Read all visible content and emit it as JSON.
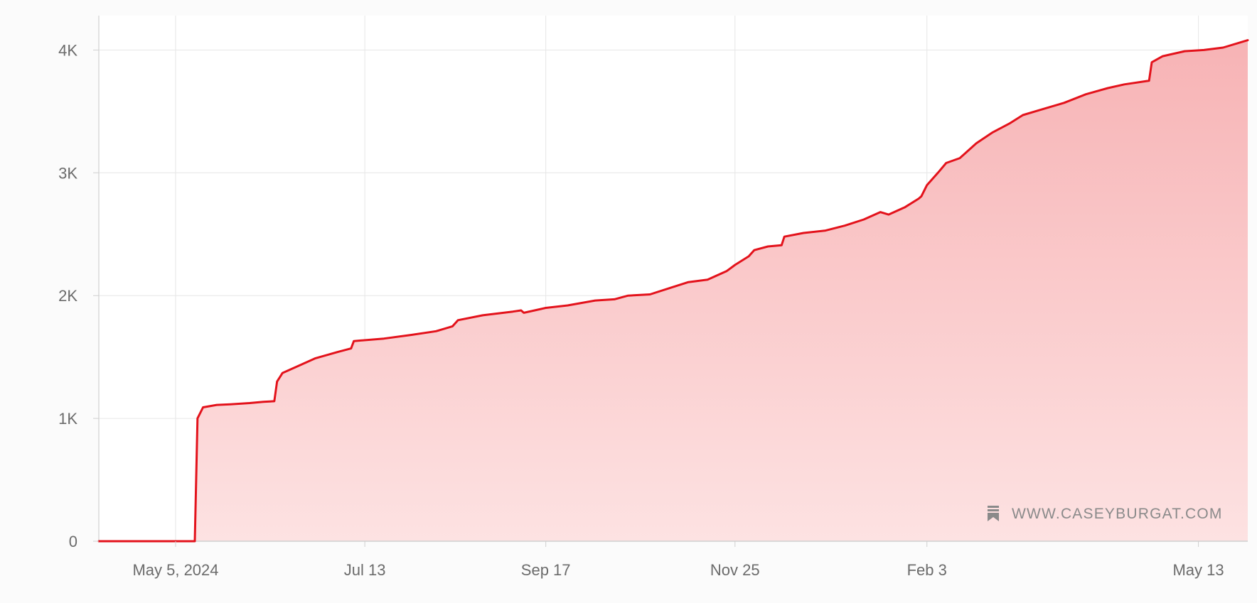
{
  "chart_data": {
    "type": "area",
    "title": "",
    "xlabel": "",
    "ylabel": "",
    "x_ticks": [
      {
        "label": "May 5, 2024",
        "date": "2024-05-05"
      },
      {
        "label": "Jul 13",
        "date": "2024-07-13"
      },
      {
        "label": "Sep 17",
        "date": "2024-09-17"
      },
      {
        "label": "Nov 25",
        "date": "2024-11-25"
      },
      {
        "label": "Feb 3",
        "date": "2025-02-03"
      },
      {
        "label": "May 13",
        "date": "2025-05-13"
      }
    ],
    "y_ticks": [
      {
        "label": "0",
        "value": 0
      },
      {
        "label": "1K",
        "value": 1000
      },
      {
        "label": "2K",
        "value": 2000
      },
      {
        "label": "3K",
        "value": 3000
      },
      {
        "label": "4K",
        "value": 4000
      }
    ],
    "xlim": [
      "2024-04-07",
      "2025-05-31"
    ],
    "ylim": [
      0,
      4280
    ],
    "grid": true,
    "colors": {
      "line": "#e3121b",
      "fill_top": "#f7b3b5",
      "fill_bottom": "#fde2e2",
      "grid": "#e6e6e6",
      "axis_text": "#6b6b6b"
    },
    "series": [
      {
        "points": [
          [
            "2024-04-07",
            0
          ],
          [
            "2024-04-25",
            0
          ],
          [
            "2024-05-05",
            0
          ],
          [
            "2024-05-12",
            0
          ],
          [
            "2024-05-13",
            1000
          ],
          [
            "2024-05-15",
            1090
          ],
          [
            "2024-05-20",
            1110
          ],
          [
            "2024-05-25",
            1115
          ],
          [
            "2024-06-01",
            1125
          ],
          [
            "2024-06-06",
            1135
          ],
          [
            "2024-06-10",
            1140
          ],
          [
            "2024-06-11",
            1300
          ],
          [
            "2024-06-13",
            1370
          ],
          [
            "2024-06-18",
            1420
          ],
          [
            "2024-06-25",
            1490
          ],
          [
            "2024-07-03",
            1540
          ],
          [
            "2024-07-08",
            1570
          ],
          [
            "2024-07-09",
            1630
          ],
          [
            "2024-07-20",
            1650
          ],
          [
            "2024-07-30",
            1680
          ],
          [
            "2024-08-08",
            1710
          ],
          [
            "2024-08-14",
            1750
          ],
          [
            "2024-08-16",
            1800
          ],
          [
            "2024-08-25",
            1840
          ],
          [
            "2024-09-05",
            1870
          ],
          [
            "2024-09-08",
            1880
          ],
          [
            "2024-09-09",
            1860
          ],
          [
            "2024-09-17",
            1900
          ],
          [
            "2024-09-25",
            1920
          ],
          [
            "2024-10-05",
            1960
          ],
          [
            "2024-10-12",
            1970
          ],
          [
            "2024-10-17",
            2000
          ],
          [
            "2024-10-25",
            2010
          ],
          [
            "2024-11-01",
            2060
          ],
          [
            "2024-11-08",
            2110
          ],
          [
            "2024-11-15",
            2130
          ],
          [
            "2024-11-22",
            2200
          ],
          [
            "2024-11-25",
            2250
          ],
          [
            "2024-11-30",
            2320
          ],
          [
            "2024-12-02",
            2370
          ],
          [
            "2024-12-07",
            2400
          ],
          [
            "2024-12-12",
            2410
          ],
          [
            "2024-12-13",
            2480
          ],
          [
            "2024-12-20",
            2510
          ],
          [
            "2024-12-28",
            2530
          ],
          [
            "2025-01-04",
            2570
          ],
          [
            "2025-01-11",
            2620
          ],
          [
            "2025-01-17",
            2680
          ],
          [
            "2025-01-20",
            2660
          ],
          [
            "2025-01-26",
            2720
          ],
          [
            "2025-01-31",
            2790
          ],
          [
            "2025-02-01",
            2810
          ],
          [
            "2025-02-03",
            2900
          ],
          [
            "2025-02-07",
            3000
          ],
          [
            "2025-02-10",
            3080
          ],
          [
            "2025-02-15",
            3120
          ],
          [
            "2025-02-21",
            3240
          ],
          [
            "2025-02-27",
            3330
          ],
          [
            "2025-03-05",
            3400
          ],
          [
            "2025-03-10",
            3470
          ],
          [
            "2025-03-16",
            3510
          ],
          [
            "2025-03-25",
            3570
          ],
          [
            "2025-04-02",
            3640
          ],
          [
            "2025-04-10",
            3690
          ],
          [
            "2025-04-16",
            3720
          ],
          [
            "2025-04-25",
            3750
          ],
          [
            "2025-04-26",
            3900
          ],
          [
            "2025-04-30",
            3950
          ],
          [
            "2025-05-08",
            3990
          ],
          [
            "2025-05-15",
            4000
          ],
          [
            "2025-05-22",
            4020
          ],
          [
            "2025-05-31",
            4080
          ]
        ]
      }
    ]
  },
  "watermark": {
    "text": "WWW.CASEYBURGAT.COM",
    "icon": "bookmark-icon"
  }
}
